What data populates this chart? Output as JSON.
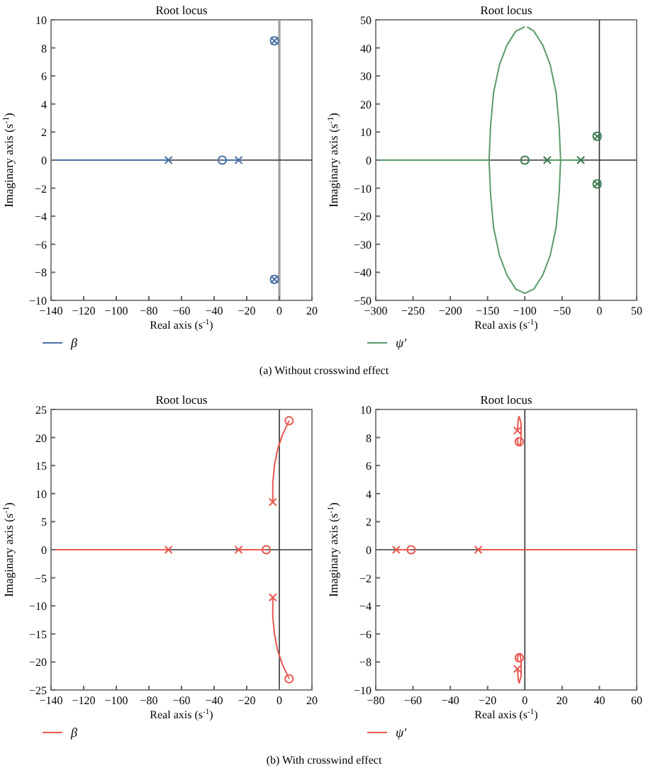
{
  "chart_data": [
    {
      "type": "line",
      "title": "Root locus",
      "xlabel": "Real axis (s$^{-1}$)",
      "ylabel": "Imaginary axis (s$^{-1}$)",
      "xlim": [
        -140,
        20
      ],
      "ylim": [
        -10,
        10
      ],
      "xticks": [
        -140,
        -120,
        -100,
        -80,
        -60,
        -40,
        -20,
        0,
        20
      ],
      "yticks": [
        -10,
        -8,
        -6,
        -4,
        -2,
        0,
        2,
        4,
        6,
        8,
        10
      ],
      "legend": "bottom",
      "annotations": [
        "(a) Without crosswind effect"
      ],
      "ref_lines": [
        {
          "axis": "x",
          "value": 0,
          "color": "#a0a0a0"
        },
        {
          "axis": "y",
          "value": 0,
          "color": "#333333"
        }
      ],
      "series": [
        {
          "name": "β",
          "color": "#4a6fa5",
          "x": [
            -140,
            -68
          ],
          "values": [
            0,
            0
          ]
        },
        {
          "color": "#4a6fa5",
          "x": [
            -35,
            -25
          ],
          "values": [
            0,
            0
          ]
        },
        {
          "type": "scatter",
          "marker": "cross",
          "color": "#4a6fa5",
          "x": [
            -68,
            -25,
            -3,
            -3
          ],
          "values": [
            0,
            0,
            8.5,
            -8.5
          ]
        },
        {
          "type": "scatter",
          "marker": "circle",
          "color": "#4a6fa5",
          "x": [
            -35,
            -3,
            -3
          ],
          "values": [
            0,
            8.5,
            -8.5
          ]
        }
      ]
    },
    {
      "type": "line",
      "title": "Root locus",
      "xlabel": "Real axis (s$^{-1}$)",
      "ylabel": "Imaginary axis (s$^{-1}$)",
      "xlim": [
        -300,
        50
      ],
      "ylim": [
        -50,
        50
      ],
      "xticks": [
        -300,
        -250,
        -200,
        -150,
        -100,
        -50,
        0,
        50
      ],
      "yticks": [
        -50,
        -40,
        -30,
        -20,
        -10,
        0,
        10,
        20,
        30,
        40,
        50
      ],
      "legend": "bottom",
      "ref_lines": [
        {
          "axis": "x",
          "value": 0,
          "color": "#333333"
        },
        {
          "axis": "y",
          "value": 0,
          "color": "#333333"
        }
      ],
      "series": [
        {
          "name": "ψ′",
          "color": "#5a9a6a",
          "x": [
            -300,
            -148
          ],
          "values": [
            0,
            0
          ]
        },
        {
          "color": "#5a9a6a",
          "x": [
            -70,
            -25
          ],
          "values": [
            0,
            0
          ]
        },
        {
          "color": "#5a9a6a",
          "x": [
            -100,
            -112,
            -124,
            -134,
            -142,
            -146,
            -148,
            -146,
            -142,
            -134,
            -124,
            -112,
            -100,
            -88,
            -76,
            -66,
            -58,
            -54,
            -52,
            -54,
            -58,
            -66,
            -76,
            -88,
            -97
          ],
          "values": [
            47.5,
            46,
            41,
            34,
            24,
            12,
            0,
            -12,
            -24,
            -34,
            -41,
            -46,
            -47.5,
            -46,
            -41,
            -34,
            -24,
            -12,
            0,
            12,
            24,
            34,
            41,
            46,
            47.5
          ]
        },
        {
          "type": "scatter",
          "marker": "cross",
          "color": "#3d7a4e",
          "x": [
            -70,
            -25,
            -3,
            -3
          ],
          "values": [
            0,
            0,
            8.5,
            -8.5
          ]
        },
        {
          "type": "scatter",
          "marker": "circle",
          "color": "#3d7a4e",
          "x": [
            -100,
            -3,
            -3
          ],
          "values": [
            0,
            8.5,
            -8.5
          ]
        }
      ]
    },
    {
      "type": "line",
      "title": "Root locus",
      "xlabel": "Real axis (s$^{-1}$)",
      "ylabel": "Imaginary axis (s$^{-1}$)",
      "xlim": [
        -140,
        20
      ],
      "ylim": [
        -25,
        25
      ],
      "xticks": [
        -140,
        -120,
        -100,
        -80,
        -60,
        -40,
        -20,
        0,
        20
      ],
      "yticks": [
        -25,
        -20,
        -15,
        -10,
        -5,
        0,
        5,
        10,
        15,
        20,
        25
      ],
      "legend": "bottom",
      "annotations": [
        "(b) With crosswind effect"
      ],
      "ref_lines": [
        {
          "axis": "x",
          "value": 0,
          "color": "#333333"
        },
        {
          "axis": "y",
          "value": 0,
          "color": "#333333"
        }
      ],
      "series": [
        {
          "name": "β",
          "color": "#e8584f",
          "x": [
            -140,
            -68
          ],
          "values": [
            0,
            0
          ]
        },
        {
          "color": "#e8584f",
          "x": [
            -25,
            -8
          ],
          "values": [
            0,
            0
          ]
        },
        {
          "color": "#e8584f",
          "x": [
            -4,
            -4,
            -3,
            -1,
            2,
            6
          ],
          "values": [
            8.5,
            12,
            15,
            18,
            20.5,
            23
          ]
        },
        {
          "color": "#e8584f",
          "x": [
            -4,
            -4,
            -3,
            -1,
            2,
            6
          ],
          "values": [
            -8.5,
            -12,
            -15,
            -18,
            -20.5,
            -23
          ]
        },
        {
          "type": "scatter",
          "marker": "cross",
          "color": "#e8584f",
          "x": [
            -68,
            -25,
            -4,
            -4
          ],
          "values": [
            0,
            0,
            8.5,
            -8.5
          ]
        },
        {
          "type": "scatter",
          "marker": "circle",
          "color": "#e8584f",
          "x": [
            -8,
            6,
            6
          ],
          "values": [
            0,
            23,
            -23
          ]
        }
      ]
    },
    {
      "type": "line",
      "title": "Root locus",
      "xlabel": "Real axis (s$^{-1}$)",
      "ylabel": "Imaginary axis (s$^{-1}$)",
      "xlim": [
        -80,
        60
      ],
      "ylim": [
        -10,
        10
      ],
      "xticks": [
        -80,
        -60,
        -40,
        -20,
        0,
        20,
        40,
        60
      ],
      "yticks": [
        -10,
        -8,
        -6,
        -4,
        -2,
        0,
        2,
        4,
        6,
        8,
        10
      ],
      "legend": "bottom",
      "ref_lines": [
        {
          "axis": "x",
          "value": 0,
          "color": "#333333"
        },
        {
          "axis": "y",
          "value": 0,
          "color": "#333333"
        }
      ],
      "series": [
        {
          "name": "ψ′",
          "color": "#e8584f",
          "x": [
            -69,
            -61
          ],
          "values": [
            0,
            0
          ]
        },
        {
          "color": "#e8584f",
          "x": [
            -25,
            60
          ],
          "values": [
            0,
            0
          ]
        },
        {
          "color": "#e8584f",
          "x": [
            -4,
            -3.5,
            -3,
            -2,
            -2,
            -2.5,
            -3.5,
            -4,
            -3.5
          ],
          "values": [
            8.5,
            9.3,
            9.5,
            9,
            8,
            7.4,
            7.5,
            7.8,
            8
          ]
        },
        {
          "color": "#e8584f",
          "x": [
            -4,
            -3.5,
            -3,
            -2,
            -2,
            -2.5,
            -3.5,
            -4,
            -3.5
          ],
          "values": [
            -8.5,
            -9.3,
            -9.5,
            -9,
            -8,
            -7.4,
            -7.5,
            -7.8,
            -8
          ]
        },
        {
          "type": "scatter",
          "marker": "cross",
          "color": "#e8584f",
          "x": [
            -69,
            -25,
            -4,
            -4
          ],
          "values": [
            0,
            0,
            8.5,
            -8.5
          ]
        },
        {
          "type": "scatter",
          "marker": "circle",
          "color": "#e8584f",
          "x": [
            -61,
            -3,
            -3
          ],
          "values": [
            0,
            7.7,
            -7.7
          ]
        }
      ]
    }
  ]
}
